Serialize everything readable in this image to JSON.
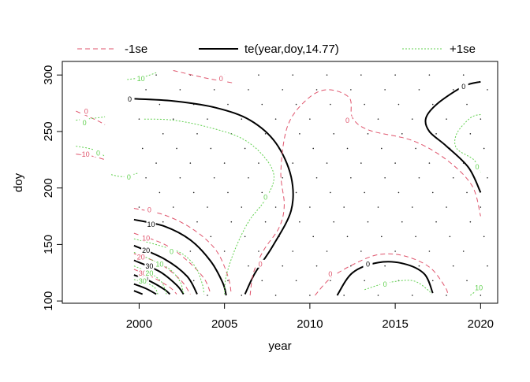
{
  "chart_data": {
    "type": "contour",
    "xlabel": "year",
    "ylabel": "doy",
    "xlim": [
      1995.5,
      2021
    ],
    "ylim": [
      98,
      312
    ],
    "xticks": [
      2000,
      2005,
      2010,
      2015,
      2020
    ],
    "yticks": [
      100,
      150,
      200,
      250,
      300
    ],
    "grid": false,
    "legend_placement": "top",
    "legend": [
      {
        "key": "minus",
        "label": "-1se",
        "color": "#df536b",
        "dash": "6,4",
        "width": 1
      },
      {
        "key": "fit",
        "label": "te(year,doy,14.77)",
        "color": "#000000",
        "dash": "",
        "width": 2
      },
      {
        "key": "plus",
        "label": "+1se",
        "color": "#61d04f",
        "dash": "2,2",
        "width": 1
      }
    ],
    "series": [
      {
        "style": "fit",
        "level": "0",
        "points": [
          [
            1999.5,
            279
          ],
          [
            2002,
            277
          ],
          [
            2004.5,
            271
          ],
          [
            2006.5,
            260
          ],
          [
            2008,
            240
          ],
          [
            2008.9,
            210
          ],
          [
            2008.9,
            180
          ],
          [
            2007.8,
            148
          ],
          [
            2006.8,
            125
          ],
          [
            2006.2,
            106
          ]
        ]
      },
      {
        "style": "fit",
        "level": "0",
        "points": [
          [
            2020,
            294
          ],
          [
            2019,
            290
          ],
          [
            2017.5,
            275
          ],
          [
            2016.8,
            262
          ],
          [
            2017,
            250
          ],
          [
            2018,
            237
          ],
          [
            2019.3,
            218
          ],
          [
            2020,
            196
          ]
        ]
      },
      {
        "style": "fit",
        "level": "0",
        "points": [
          [
            2011.6,
            105
          ],
          [
            2012.5,
            125
          ],
          [
            2014,
            134
          ],
          [
            2015.5,
            133
          ],
          [
            2016.7,
            124
          ],
          [
            2017.2,
            107
          ]
        ]
      },
      {
        "style": "fit",
        "level": "10",
        "points": [
          [
            1999.7,
            172
          ],
          [
            2001.5,
            166
          ],
          [
            2003,
            154
          ],
          [
            2004.2,
            135
          ],
          [
            2004.9,
            116
          ],
          [
            2005.1,
            105
          ]
        ]
      },
      {
        "style": "fit",
        "level": "20",
        "points": [
          [
            1999.7,
            149
          ],
          [
            2001.5,
            137
          ],
          [
            2002.8,
            122
          ],
          [
            2003.4,
            106
          ]
        ]
      },
      {
        "style": "fit",
        "level": "30",
        "points": [
          [
            1999.7,
            136
          ],
          [
            2001.2,
            126
          ],
          [
            2002.2,
            114
          ],
          [
            2002.6,
            106
          ]
        ]
      },
      {
        "style": "fit",
        "level": "40",
        "points": [
          [
            1999.7,
            123
          ],
          [
            2000.7,
            117
          ],
          [
            2001.5,
            110
          ],
          [
            2001.8,
            106
          ]
        ]
      },
      {
        "style": "fit",
        "level": "",
        "points": [
          [
            1999.7,
            115
          ],
          [
            2000.4,
            111
          ],
          [
            2001,
            106
          ]
        ]
      },
      {
        "style": "fit",
        "level": "",
        "points": [
          [
            1999.7,
            109
          ],
          [
            2000.2,
            106
          ]
        ]
      },
      {
        "style": "minus",
        "level": "0",
        "points": [
          [
            2002,
            304
          ],
          [
            2004,
            297
          ],
          [
            2005.5,
            293
          ]
        ]
      },
      {
        "style": "minus",
        "level": "0",
        "points": [
          [
            1996.3,
            268
          ],
          [
            1997.5,
            260
          ],
          [
            1998,
            256
          ]
        ]
      },
      {
        "style": "minus",
        "level": "-10",
        "points": [
          [
            1996.3,
            230
          ],
          [
            1997.3,
            228
          ],
          [
            1998,
            225
          ]
        ]
      },
      {
        "style": "minus",
        "level": "0",
        "points": [
          [
            2006.5,
            105
          ],
          [
            2006.7,
            125
          ],
          [
            2007.3,
            145
          ],
          [
            2008.2,
            165
          ],
          [
            2008.5,
            185
          ],
          [
            2008.3,
            215
          ],
          [
            2008.7,
            255
          ],
          [
            2009.8,
            278
          ],
          [
            2011,
            287
          ],
          [
            2012.3,
            280
          ],
          [
            2012.5,
            262
          ],
          [
            2013.5,
            251
          ],
          [
            2016,
            242
          ],
          [
            2018,
            225
          ],
          [
            2019.5,
            202
          ],
          [
            2020,
            175
          ]
        ]
      },
      {
        "style": "minus",
        "level": "0",
        "points": [
          [
            2010.3,
            105
          ],
          [
            2011.2,
            120
          ],
          [
            2012.5,
            132
          ],
          [
            2014,
            141
          ],
          [
            2015.5,
            140
          ],
          [
            2017,
            130
          ],
          [
            2017.9,
            113
          ],
          [
            2018.1,
            105
          ]
        ]
      },
      {
        "style": "minus",
        "level": "0",
        "points": [
          [
            1999.7,
            182
          ],
          [
            2001.5,
            176
          ],
          [
            2003.2,
            163
          ],
          [
            2004.5,
            145
          ],
          [
            2005.2,
            122
          ],
          [
            2005.4,
            106
          ]
        ]
      },
      {
        "style": "minus",
        "level": "10",
        "points": [
          [
            1999.7,
            160
          ],
          [
            2001.5,
            150
          ],
          [
            2002.8,
            136
          ],
          [
            2003.8,
            120
          ],
          [
            2004.2,
            106
          ]
        ]
      },
      {
        "style": "minus",
        "level": "20",
        "points": [
          [
            1999.7,
            142
          ],
          [
            2001.2,
            133
          ],
          [
            2002.4,
            119
          ],
          [
            2003,
            106
          ]
        ]
      },
      {
        "style": "minus",
        "level": "30",
        "points": [
          [
            1999.7,
            128
          ],
          [
            2000.8,
            121
          ],
          [
            2001.8,
            112
          ],
          [
            2002.2,
            106
          ]
        ]
      },
      {
        "style": "plus",
        "level": "10",
        "points": [
          [
            1999.3,
            296
          ],
          [
            2000.2,
            298
          ],
          [
            2001,
            302
          ]
        ]
      },
      {
        "style": "plus",
        "level": "0",
        "points": [
          [
            1996.3,
            260
          ],
          [
            1997.5,
            262
          ],
          [
            1998,
            263
          ]
        ]
      },
      {
        "style": "plus",
        "level": "0",
        "points": [
          [
            1996.3,
            237
          ],
          [
            1997.3,
            234
          ],
          [
            1998,
            228
          ]
        ]
      },
      {
        "style": "plus",
        "level": "0",
        "points": [
          [
            1999.9,
            213
          ],
          [
            1999.1,
            210
          ],
          [
            1998.3,
            212
          ]
        ]
      },
      {
        "style": "plus",
        "level": "0",
        "points": [
          [
            2000.3,
            261
          ],
          [
            2002,
            260
          ],
          [
            2004,
            254
          ],
          [
            2006,
            244
          ],
          [
            2007.3,
            228
          ],
          [
            2007.9,
            210
          ],
          [
            2007.4,
            190
          ],
          [
            2006.4,
            170
          ],
          [
            2005.6,
            145
          ],
          [
            2005.1,
            122
          ],
          [
            2005,
            106
          ]
        ]
      },
      {
        "style": "plus",
        "level": "0",
        "points": [
          [
            2020,
            265
          ],
          [
            2019.4,
            262
          ],
          [
            2018.6,
            248
          ],
          [
            2018.6,
            235
          ],
          [
            2019.6,
            225
          ],
          [
            2020,
            214
          ]
        ]
      },
      {
        "style": "plus",
        "level": "0",
        "points": [
          [
            2013.2,
            110
          ],
          [
            2014.5,
            116
          ],
          [
            2016,
            118
          ],
          [
            2016.9,
            110
          ],
          [
            2017.1,
            106
          ]
        ]
      },
      {
        "style": "plus",
        "level": "10",
        "points": [
          [
            2019.4,
            105
          ],
          [
            2019.8,
            110
          ],
          [
            2020,
            115
          ]
        ]
      },
      {
        "style": "plus",
        "level": "0",
        "points": [
          [
            1999.7,
            155
          ],
          [
            2001.2,
            149
          ],
          [
            2002.5,
            142
          ],
          [
            2003.3,
            130
          ],
          [
            2003.7,
            115
          ],
          [
            2003.8,
            106
          ]
        ]
      },
      {
        "style": "plus",
        "level": "10",
        "points": [
          [
            1999.7,
            143
          ],
          [
            2000.8,
            136
          ],
          [
            2001.8,
            128
          ],
          [
            2002.4,
            117
          ],
          [
            2002.6,
            106
          ]
        ]
      },
      {
        "style": "plus",
        "level": "20",
        "points": [
          [
            1999.7,
            131
          ],
          [
            2000.6,
            125
          ],
          [
            2001.3,
            117
          ],
          [
            2001.6,
            106
          ]
        ]
      },
      {
        "style": "plus",
        "level": "30",
        "points": [
          [
            1999.7,
            119
          ],
          [
            2000.4,
            116
          ],
          [
            2000.9,
            112
          ],
          [
            2001.1,
            106
          ]
        ]
      }
    ],
    "level_labels": [
      {
        "text": "0",
        "x": 1999.45,
        "y": 279,
        "style": "fit"
      },
      {
        "text": "0",
        "x": 2019,
        "y": 290,
        "style": "fit"
      },
      {
        "text": "0",
        "x": 2013.4,
        "y": 133,
        "style": "fit"
      },
      {
        "text": "10",
        "x": 2000.7,
        "y": 168,
        "style": "fit"
      },
      {
        "text": "20",
        "x": 2000.4,
        "y": 145,
        "style": "fit"
      },
      {
        "text": "30",
        "x": 2000.6,
        "y": 131,
        "style": "fit"
      },
      {
        "text": "40",
        "x": 2000.3,
        "y": 120,
        "style": "fit"
      },
      {
        "text": "0",
        "x": 2004.8,
        "y": 297,
        "style": "minus"
      },
      {
        "text": "0",
        "x": 1996.9,
        "y": 268,
        "style": "minus"
      },
      {
        "text": "-10",
        "x": 1996.8,
        "y": 230,
        "style": "minus"
      },
      {
        "text": "0",
        "x": 2012.2,
        "y": 260,
        "style": "minus"
      },
      {
        "text": "0",
        "x": 2007.1,
        "y": 133,
        "style": "minus"
      },
      {
        "text": "0",
        "x": 2011.2,
        "y": 124,
        "style": "minus"
      },
      {
        "text": "0",
        "x": 2000.6,
        "y": 181,
        "style": "minus"
      },
      {
        "text": "10",
        "x": 2000.4,
        "y": 156,
        "style": "minus"
      },
      {
        "text": "20",
        "x": 2000.1,
        "y": 139,
        "style": "minus"
      },
      {
        "text": "30",
        "x": 2000.2,
        "y": 125,
        "style": "minus"
      },
      {
        "text": "10",
        "x": 2000.1,
        "y": 297,
        "style": "plus"
      },
      {
        "text": "0",
        "x": 1996.8,
        "y": 258,
        "style": "plus"
      },
      {
        "text": "0",
        "x": 1997.6,
        "y": 231,
        "style": "plus"
      },
      {
        "text": "0",
        "x": 1999.4,
        "y": 210,
        "style": "plus"
      },
      {
        "text": "0",
        "x": 2007.4,
        "y": 192,
        "style": "plus"
      },
      {
        "text": "0",
        "x": 2019.8,
        "y": 219,
        "style": "plus"
      },
      {
        "text": "0",
        "x": 2014.4,
        "y": 115,
        "style": "plus"
      },
      {
        "text": "10",
        "x": 2019.9,
        "y": 112,
        "style": "plus"
      },
      {
        "text": "0",
        "x": 2001.9,
        "y": 144,
        "style": "plus"
      },
      {
        "text": "10",
        "x": 2001.2,
        "y": 133,
        "style": "plus"
      },
      {
        "text": "20",
        "x": 2000.6,
        "y": 125,
        "style": "plus"
      },
      {
        "text": "30",
        "x": 2000.2,
        "y": 118,
        "style": "plus"
      }
    ]
  }
}
